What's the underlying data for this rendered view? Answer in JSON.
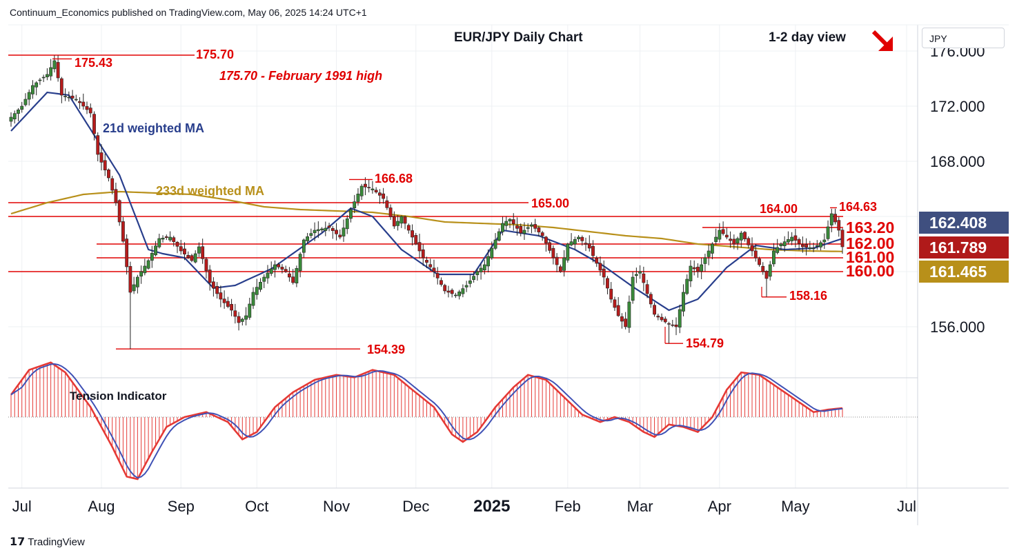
{
  "header": {
    "publisher": "Continuum_Economics published on TradingView.com, May 06, 2025 14:24 UTC+1",
    "title": "EUR/JPY Daily Chart",
    "view": "1-2 day view",
    "currency": "JPY"
  },
  "footer": {
    "brand": "TradingView",
    "logo": "tradingview-logo-icon"
  },
  "colors": {
    "up": "#3a8a3a",
    "down": "#b71c1c",
    "level_line": "#e00000",
    "ma21": "#283e8c",
    "ma233": "#b8901a",
    "tension_fill": "#e53935",
    "tension_line": "#3f51b5",
    "grid": "#eef0f3"
  },
  "chart_data": [
    {
      "type": "candlestick",
      "title": "EUR/JPY Daily Chart",
      "ylim": [
        150.5,
        177.5
      ],
      "y_ticks": [
        "156.000",
        "168.000",
        "172.000",
        "176.000"
      ],
      "x_ticks": [
        "Jul",
        "Aug",
        "Sep",
        "Oct",
        "Nov",
        "Dec",
        "2025",
        "Feb",
        "Mar",
        "Apr",
        "May",
        "Jul"
      ],
      "horizontal_levels": [
        {
          "label": "175.70",
          "value": 175.7
        },
        {
          "label": "165.00",
          "value": 165.0
        },
        {
          "label": "164.00",
          "value": 164.0
        },
        {
          "label": "163.20",
          "value": 163.2
        },
        {
          "label": "162.00",
          "value": 162.0
        },
        {
          "label": "161.00",
          "value": 161.0
        },
        {
          "label": "160.00",
          "value": 160.0
        },
        {
          "label": "154.39",
          "value": 154.39
        },
        {
          "label": "154.79",
          "value": 154.79
        },
        {
          "label": "158.16",
          "value": 158.16
        }
      ],
      "point_labels": [
        {
          "label": "175.43",
          "value": 175.43
        },
        {
          "label": "166.68",
          "value": 166.68
        },
        {
          "label": "164.63",
          "value": 164.63
        }
      ],
      "annotations": [
        "175.70 - February 1991 high",
        "21d weighted MA",
        "233d weighted MA"
      ],
      "price_badges": [
        {
          "label": "162.408",
          "value": 162.408,
          "color": "#3f4f7f"
        },
        {
          "label": "161.789",
          "value": 161.789,
          "color": "#b01a1a"
        },
        {
          "label": "161.465",
          "value": 161.465,
          "color": "#b8901a"
        }
      ],
      "series": [
        {
          "name": "21d weighted MA",
          "anchors": [
            [
              0,
              170.2
            ],
            [
              10,
              173.0
            ],
            [
              16,
              172.8
            ],
            [
              30,
              167.0
            ],
            [
              38,
              161.6
            ],
            [
              42,
              161.3
            ],
            [
              48,
              161.0
            ],
            [
              56,
              158.8
            ],
            [
              62,
              159.0
            ],
            [
              72,
              160.2
            ],
            [
              86,
              162.8
            ],
            [
              94,
              164.6
            ],
            [
              100,
              164.0
            ],
            [
              108,
              161.6
            ],
            [
              118,
              159.8
            ],
            [
              128,
              159.8
            ],
            [
              136,
              163.0
            ],
            [
              146,
              162.6
            ],
            [
              156,
              161.6
            ],
            [
              164,
              160.4
            ],
            [
              172,
              158.9
            ],
            [
              182,
              157.2
            ],
            [
              190,
              158.0
            ],
            [
              198,
              160.3
            ],
            [
              206,
              161.9
            ],
            [
              214,
              161.6
            ],
            [
              222,
              161.7
            ],
            [
              230,
              162.4
            ]
          ]
        },
        {
          "name": "233d weighted MA",
          "anchors": [
            [
              0,
              164.2
            ],
            [
              10,
              165.0
            ],
            [
              20,
              165.6
            ],
            [
              30,
              165.8
            ],
            [
              40,
              165.7
            ],
            [
              50,
              165.6
            ],
            [
              60,
              165.2
            ],
            [
              70,
              164.7
            ],
            [
              80,
              164.5
            ],
            [
              90,
              164.4
            ],
            [
              100,
              164.3
            ],
            [
              110,
              164.0
            ],
            [
              120,
              163.6
            ],
            [
              130,
              163.5
            ],
            [
              140,
              163.4
            ],
            [
              150,
              163.2
            ],
            [
              160,
              162.9
            ],
            [
              170,
              162.6
            ],
            [
              180,
              162.4
            ],
            [
              190,
              162.0
            ],
            [
              200,
              161.8
            ],
            [
              210,
              161.6
            ],
            [
              220,
              161.5
            ],
            [
              230,
              161.46
            ]
          ]
        },
        {
          "name": "close",
          "anchors": [
            [
              0,
              171.2
            ],
            [
              3,
              172.0
            ],
            [
              6,
              173.5
            ],
            [
              10,
              174.3
            ],
            [
              12,
              175.3
            ],
            [
              14,
              172.8
            ],
            [
              18,
              172.5
            ],
            [
              22,
              171.5
            ],
            [
              24,
              168.5
            ],
            [
              27,
              166.8
            ],
            [
              29,
              165.0
            ],
            [
              31,
              162.2
            ],
            [
              33,
              158.5
            ],
            [
              35,
              159.6
            ],
            [
              38,
              160.8
            ],
            [
              41,
              162.4
            ],
            [
              44,
              162.5
            ],
            [
              47,
              161.5
            ],
            [
              50,
              160.8
            ],
            [
              52,
              161.8
            ],
            [
              55,
              159.2
            ],
            [
              58,
              158.0
            ],
            [
              61,
              157.2
            ],
            [
              63,
              156.3
            ],
            [
              65,
              156.8
            ],
            [
              67,
              158.5
            ],
            [
              70,
              159.6
            ],
            [
              73,
              160.5
            ],
            [
              76,
              160.0
            ],
            [
              78,
              159.2
            ],
            [
              81,
              162.3
            ],
            [
              84,
              163.0
            ],
            [
              88,
              163.2
            ],
            [
              91,
              162.5
            ],
            [
              94,
              164.5
            ],
            [
              97,
              166.2
            ],
            [
              100,
              166.0
            ],
            [
              103,
              165.3
            ],
            [
              106,
              163.3
            ],
            [
              108,
              164.0
            ],
            [
              111,
              162.5
            ],
            [
              114,
              161.0
            ],
            [
              117,
              160.0
            ],
            [
              120,
              158.6
            ],
            [
              123,
              158.3
            ],
            [
              126,
              159.0
            ],
            [
              129,
              160.0
            ],
            [
              131,
              160.5
            ],
            [
              134,
              162.3
            ],
            [
              136,
              163.5
            ],
            [
              138,
              163.8
            ],
            [
              141,
              162.8
            ],
            [
              144,
              163.4
            ],
            [
              147,
              162.6
            ],
            [
              150,
              161.0
            ],
            [
              152,
              160.0
            ],
            [
              154,
              162.0
            ],
            [
              157,
              162.5
            ],
            [
              160,
              161.7
            ],
            [
              162,
              160.6
            ],
            [
              164,
              159.6
            ],
            [
              166,
              158.0
            ],
            [
              168,
              156.8
            ],
            [
              170,
              156.0
            ],
            [
              172,
              159.6
            ],
            [
              174,
              160.0
            ],
            [
              176,
              158.4
            ],
            [
              178,
              156.9
            ],
            [
              180,
              156.5
            ],
            [
              182,
              156.2
            ],
            [
              184,
              156.0
            ],
            [
              186,
              158.5
            ],
            [
              188,
              160.4
            ],
            [
              190,
              160.0
            ],
            [
              193,
              161.5
            ],
            [
              196,
              163.0
            ],
            [
              198,
              162.5
            ],
            [
              200,
              162.0
            ],
            [
              202,
              162.8
            ],
            [
              205,
              161.5
            ],
            [
              207,
              160.5
            ],
            [
              209,
              159.5
            ],
            [
              211,
              161.5
            ],
            [
              213,
              162.0
            ],
            [
              216,
              162.5
            ],
            [
              219,
              161.8
            ],
            [
              222,
              161.7
            ],
            [
              225,
              162.3
            ],
            [
              227,
              164.2
            ],
            [
              229,
              163.0
            ],
            [
              230,
              161.8
            ]
          ]
        }
      ]
    },
    {
      "type": "area",
      "title": "Tension Indicator",
      "ylim": [
        -1.1,
        1.1
      ],
      "series": [
        {
          "name": "Tension Indicator",
          "anchors": [
            [
              0,
              0.45
            ],
            [
              5,
              0.95
            ],
            [
              11,
              1.1
            ],
            [
              15,
              0.9
            ],
            [
              22,
              0.2
            ],
            [
              28,
              -0.6
            ],
            [
              32,
              -1.2
            ],
            [
              35,
              -1.25
            ],
            [
              39,
              -0.7
            ],
            [
              43,
              -0.2
            ],
            [
              48,
              0.0
            ],
            [
              54,
              0.1
            ],
            [
              60,
              -0.1
            ],
            [
              64,
              -0.45
            ],
            [
              68,
              -0.3
            ],
            [
              73,
              0.2
            ],
            [
              78,
              0.5
            ],
            [
              84,
              0.75
            ],
            [
              90,
              0.85
            ],
            [
              95,
              0.8
            ],
            [
              100,
              0.95
            ],
            [
              106,
              0.85
            ],
            [
              111,
              0.55
            ],
            [
              117,
              0.2
            ],
            [
              122,
              -0.35
            ],
            [
              125,
              -0.5
            ],
            [
              129,
              -0.3
            ],
            [
              134,
              0.2
            ],
            [
              139,
              0.6
            ],
            [
              143,
              0.85
            ],
            [
              148,
              0.75
            ],
            [
              153,
              0.4
            ],
            [
              158,
              0.05
            ],
            [
              163,
              -0.1
            ],
            [
              167,
              0.0
            ],
            [
              171,
              -0.1
            ],
            [
              175,
              -0.3
            ],
            [
              178,
              -0.4
            ],
            [
              182,
              -0.15
            ],
            [
              186,
              -0.2
            ],
            [
              190,
              -0.3
            ],
            [
              194,
              0.0
            ],
            [
              198,
              0.55
            ],
            [
              202,
              0.9
            ],
            [
              207,
              0.85
            ],
            [
              212,
              0.6
            ],
            [
              217,
              0.35
            ],
            [
              222,
              0.1
            ],
            [
              226,
              0.15
            ],
            [
              230,
              0.18
            ]
          ]
        }
      ]
    }
  ]
}
